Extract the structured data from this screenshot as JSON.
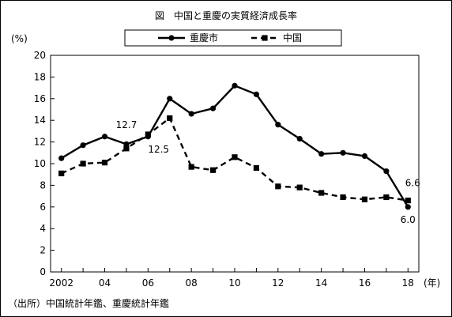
{
  "chart_data": {
    "type": "line",
    "title": "図　中国と重慶の実質経済成長率",
    "ylabel": "(%)",
    "xlabel": "(年)",
    "ylim": [
      0,
      20
    ],
    "yticks": [
      "0",
      "2",
      "4",
      "6",
      "8",
      "10",
      "12",
      "14",
      "16",
      "18",
      "20"
    ],
    "x": [
      2002,
      2003,
      2004,
      2005,
      2006,
      2007,
      2008,
      2009,
      2010,
      2011,
      2012,
      2013,
      2014,
      2015,
      2016,
      2017,
      2018
    ],
    "xtick_labels": [
      "2002",
      "04",
      "06",
      "08",
      "10",
      "12",
      "14",
      "16",
      "18"
    ],
    "legend_position": "top-center",
    "grid": false,
    "series": [
      {
        "name": "重慶市",
        "style": "solid",
        "marker": "circle",
        "color": "#000000",
        "values": [
          10.5,
          11.7,
          12.5,
          11.8,
          12.5,
          16.0,
          14.6,
          15.1,
          17.2,
          16.4,
          13.6,
          12.3,
          10.9,
          11.0,
          10.7,
          9.3,
          6.0
        ]
      },
      {
        "name": "中国",
        "style": "dashed",
        "marker": "square",
        "color": "#000000",
        "values": [
          9.1,
          10.0,
          10.1,
          11.4,
          12.7,
          14.2,
          9.7,
          9.4,
          10.6,
          9.6,
          7.9,
          7.8,
          7.3,
          6.9,
          6.7,
          6.9,
          6.6
        ]
      }
    ],
    "annotations": [
      {
        "text": "12.7",
        "x": 2006,
        "series": "中国"
      },
      {
        "text": "12.5",
        "x": 2006,
        "series": "重慶市"
      },
      {
        "text": "6.6",
        "x": 2018,
        "series": "中国"
      },
      {
        "text": "6.0",
        "x": 2018,
        "series": "重慶市"
      }
    ]
  },
  "source_note": "（出所）中国統計年鑑、重慶統計年鑑"
}
